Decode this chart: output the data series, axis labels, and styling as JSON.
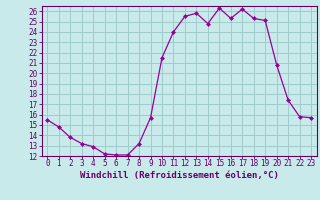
{
  "x": [
    0,
    1,
    2,
    3,
    4,
    5,
    6,
    7,
    8,
    9,
    10,
    11,
    12,
    13,
    14,
    15,
    16,
    17,
    18,
    19,
    20,
    21,
    22,
    23
  ],
  "y": [
    15.5,
    14.8,
    13.8,
    13.2,
    12.9,
    12.2,
    12.1,
    12.1,
    13.2,
    15.7,
    21.5,
    24.0,
    25.5,
    25.8,
    24.8,
    26.3,
    25.3,
    26.2,
    25.3,
    25.1,
    20.8,
    17.4,
    15.8,
    15.7
  ],
  "line_color": "#990099",
  "marker": "D",
  "marker_size": 2.0,
  "bg_color": "#c8eaea",
  "grid_color": "#a0cccc",
  "xlabel": "Windchill (Refroidissement éolien,°C)",
  "xlim": [
    -0.5,
    23.5
  ],
  "ylim": [
    12,
    26.5
  ],
  "yticks": [
    12,
    13,
    14,
    15,
    16,
    17,
    18,
    19,
    20,
    21,
    22,
    23,
    24,
    25,
    26
  ],
  "xticks": [
    0,
    1,
    2,
    3,
    4,
    5,
    6,
    7,
    8,
    9,
    10,
    11,
    12,
    13,
    14,
    15,
    16,
    17,
    18,
    19,
    20,
    21,
    22,
    23
  ],
  "tick_color": "#660066",
  "axis_color": "#660066",
  "label_fontsize": 6.5,
  "tick_fontsize": 5.5,
  "linewidth": 0.9
}
